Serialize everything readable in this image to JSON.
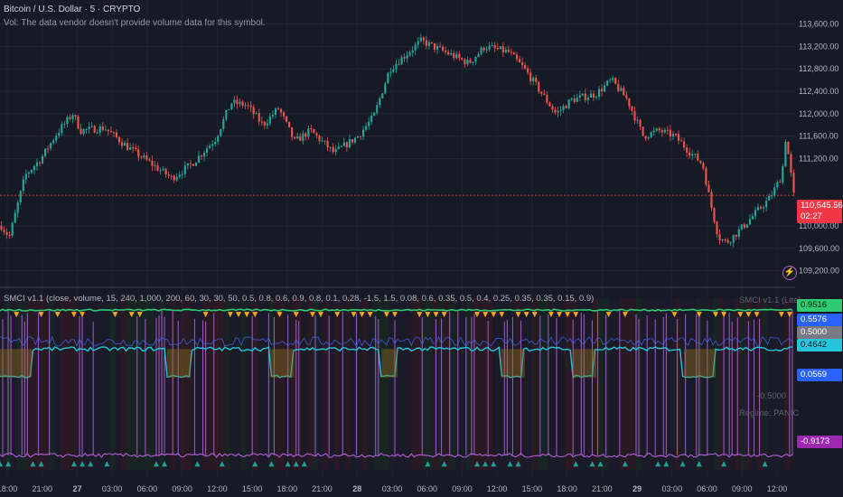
{
  "header": {
    "title": "Bitcoin / U.S. Dollar · 5 · CRYPTO",
    "vol_note": "Vol: The data vendor doesn't provide volume data for this symbol."
  },
  "indicator": {
    "header": "SMCI v1.1 (close, volume, 15, 240, 1,000, 200, 60, 30, 30, 50, 0.5, 0.8, 0.6, 0.9, 0.8, 0.1, 0.28, -1.5, 1.5, 0.08, 0.6, 0.35, 0.5, 0.4, 0.25, 0.35, 0.35, 0.15, 0.9)",
    "overlay_name": "SMCI v1.1 (Lite)",
    "overlay_regime": "Regime: PANIC",
    "overlay_mid": "-0.5000"
  },
  "price_axis": {
    "ticks": [
      "113,600.00",
      "113,200.00",
      "112,800.00",
      "112,400.00",
      "112,000.00",
      "111,600.00",
      "111,200.00",
      "110,000.00",
      "109,600.00",
      "109,200.00"
    ],
    "last_price": "110,545.56",
    "countdown": "02:27"
  },
  "ind_tags": [
    {
      "label": "0.9516",
      "bg": "#2ecc71",
      "fg": "#0b1a10"
    },
    {
      "label": "0.5576",
      "bg": "#2962ff",
      "fg": "#ffffff"
    },
    {
      "label": "0.5000",
      "bg": "#787b86",
      "fg": "#ffffff"
    },
    {
      "label": "0.4642",
      "bg": "#26c6da",
      "fg": "#0b1a20"
    },
    {
      "label": "0.0569",
      "bg": "#2962ff",
      "fg": "#ffffff"
    },
    {
      "label": "-0.9173",
      "bg": "#9c27b0",
      "fg": "#ffffff"
    }
  ],
  "time_axis": [
    "18:00",
    "21:00",
    "27",
    "03:00",
    "06:00",
    "09:00",
    "12:00",
    "15:00",
    "18:00",
    "21:00",
    "28",
    "03:00",
    "06:00",
    "09:00",
    "12:00",
    "15:00",
    "18:00",
    "21:00",
    "29",
    "03:00",
    "06:00",
    "09:00",
    "12:00"
  ],
  "colors": {
    "background": "#161a25",
    "up": "#26a69a",
    "down": "#ef5350",
    "bb_line": "#2ecc71",
    "cyan_line": "#26c6da",
    "purple": "#b05fd6",
    "marker_top": "#f5a623",
    "marker_bottom": "#1fa398"
  },
  "chart_data": {
    "type": "line",
    "title": "Bitcoin / U.S. Dollar · 5 · CRYPTO",
    "ylim": [
      109000,
      113900
    ],
    "price_path": [
      {
        "t": 0,
        "p": 110000
      },
      {
        "t": 0.01,
        "p": 109800
      },
      {
        "t": 0.03,
        "p": 110900
      },
      {
        "t": 0.05,
        "p": 111200
      },
      {
        "t": 0.07,
        "p": 111650
      },
      {
        "t": 0.09,
        "p": 112000
      },
      {
        "t": 0.1,
        "p": 111700
      },
      {
        "t": 0.13,
        "p": 111750
      },
      {
        "t": 0.16,
        "p": 111400
      },
      {
        "t": 0.19,
        "p": 111100
      },
      {
        "t": 0.215,
        "p": 110850
      },
      {
        "t": 0.24,
        "p": 111100
      },
      {
        "t": 0.27,
        "p": 111550
      },
      {
        "t": 0.29,
        "p": 112200
      },
      {
        "t": 0.31,
        "p": 112150
      },
      {
        "t": 0.33,
        "p": 111800
      },
      {
        "t": 0.35,
        "p": 112100
      },
      {
        "t": 0.37,
        "p": 111500
      },
      {
        "t": 0.39,
        "p": 111700
      },
      {
        "t": 0.42,
        "p": 111300
      },
      {
        "t": 0.45,
        "p": 111600
      },
      {
        "t": 0.47,
        "p": 111950
      },
      {
        "t": 0.49,
        "p": 112800
      },
      {
        "t": 0.51,
        "p": 113050
      },
      {
        "t": 0.53,
        "p": 113300
      },
      {
        "t": 0.56,
        "p": 113100
      },
      {
        "t": 0.59,
        "p": 112900
      },
      {
        "t": 0.61,
        "p": 113200
      },
      {
        "t": 0.64,
        "p": 113100
      },
      {
        "t": 0.66,
        "p": 112800
      },
      {
        "t": 0.68,
        "p": 112400
      },
      {
        "t": 0.7,
        "p": 112000
      },
      {
        "t": 0.72,
        "p": 112250
      },
      {
        "t": 0.75,
        "p": 112350
      },
      {
        "t": 0.77,
        "p": 112600
      },
      {
        "t": 0.79,
        "p": 112250
      },
      {
        "t": 0.81,
        "p": 111600
      },
      {
        "t": 0.83,
        "p": 111700
      },
      {
        "t": 0.85,
        "p": 111600
      },
      {
        "t": 0.87,
        "p": 111300
      },
      {
        "t": 0.885,
        "p": 111100
      },
      {
        "t": 0.895,
        "p": 110400
      },
      {
        "t": 0.905,
        "p": 109800
      },
      {
        "t": 0.915,
        "p": 109700
      },
      {
        "t": 0.93,
        "p": 109900
      },
      {
        "t": 0.95,
        "p": 110200
      },
      {
        "t": 0.97,
        "p": 110500
      },
      {
        "t": 0.985,
        "p": 110900
      },
      {
        "t": 0.99,
        "p": 111600
      },
      {
        "t": 1.0,
        "p": 110545.56
      }
    ],
    "last_price": 110545.56,
    "indicator_ylim": [
      -1.05,
      1.1
    ],
    "indicator_levels": {
      "upper": 0.9516,
      "signal": 0.5576,
      "mid": 0.5,
      "cyan": 0.4642,
      "low": 0.0569,
      "purple": -0.9173
    }
  }
}
